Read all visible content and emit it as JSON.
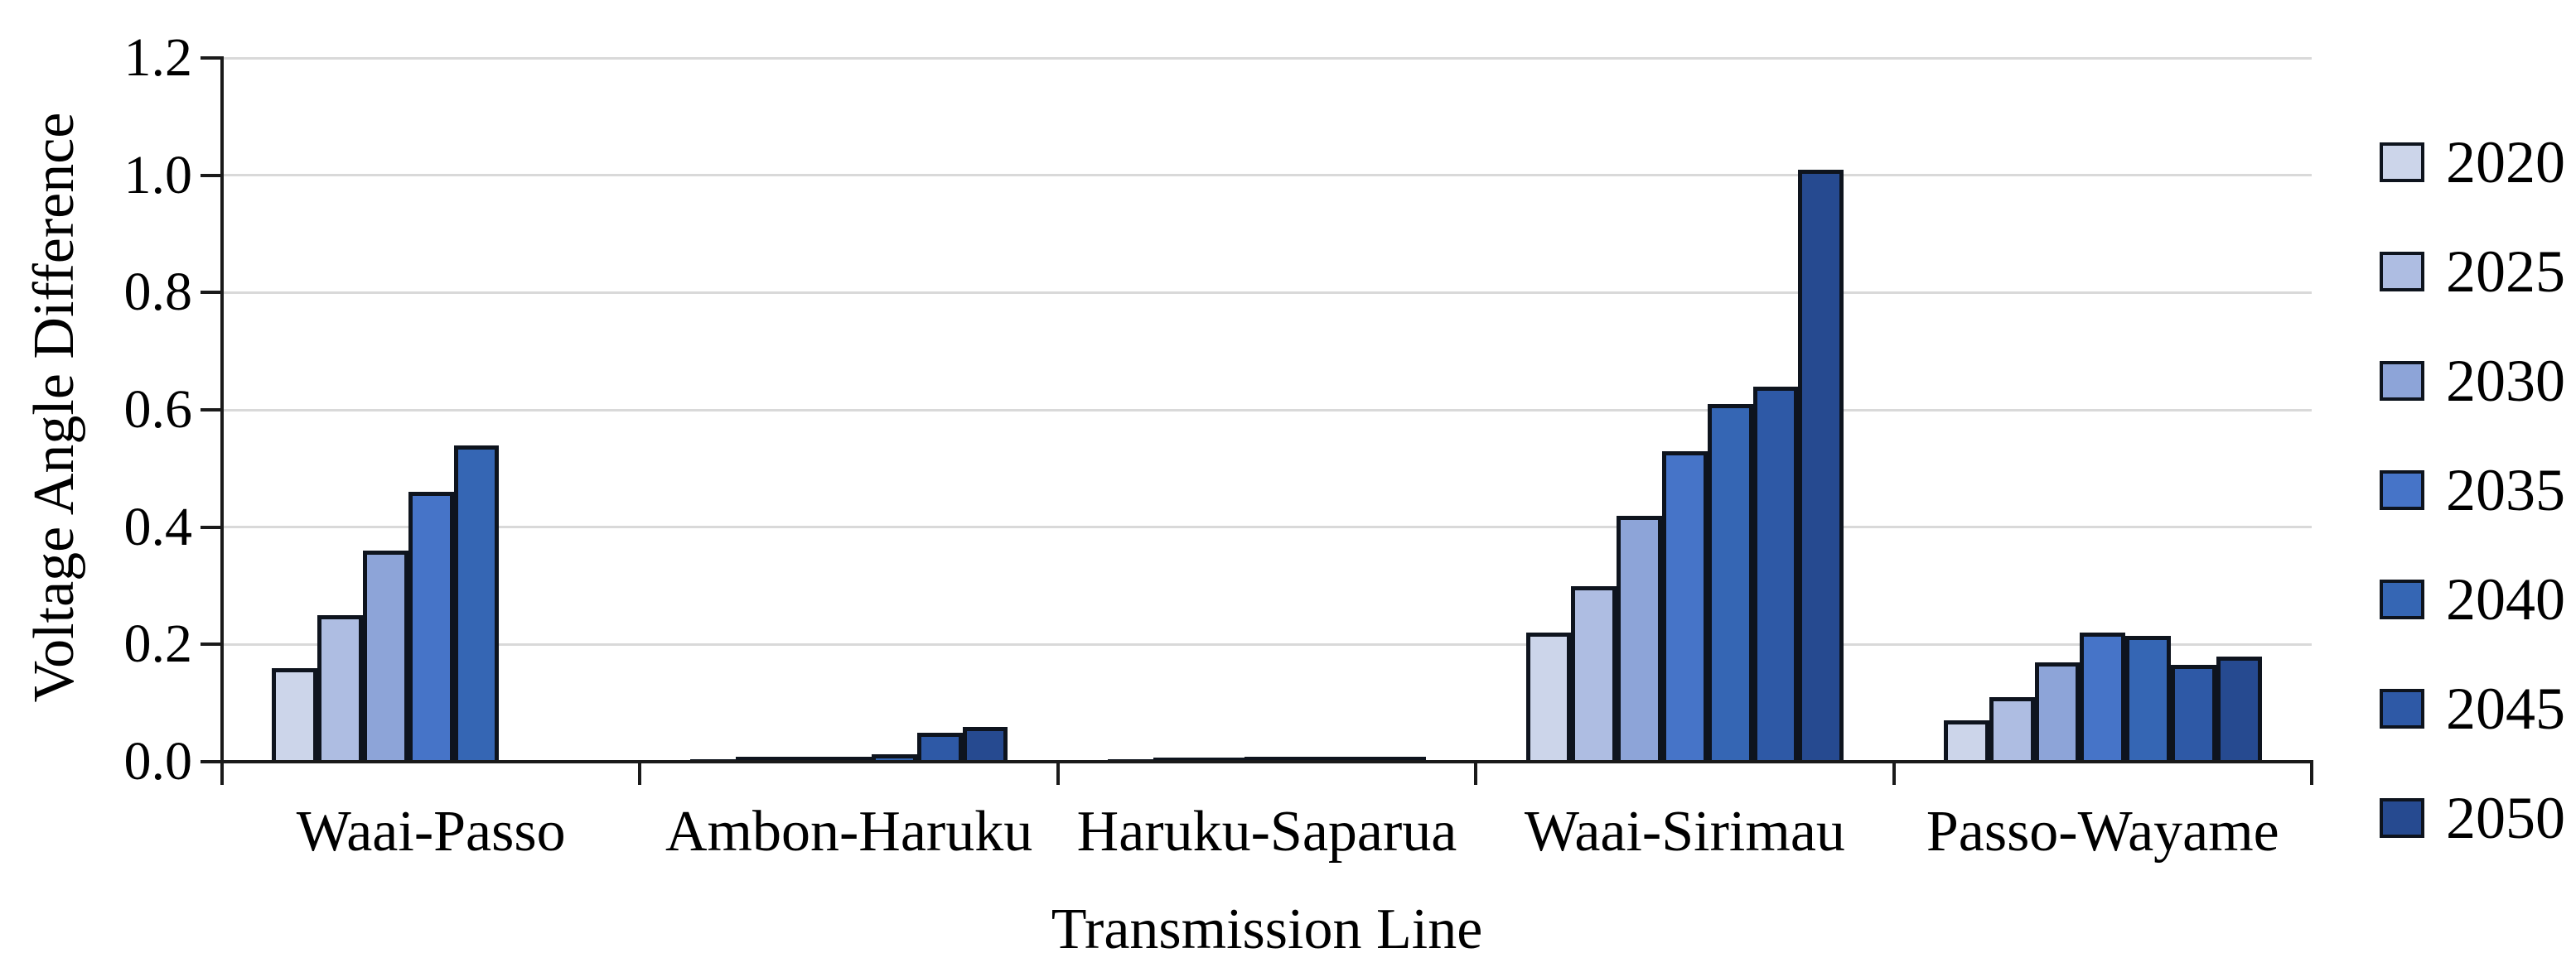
{
  "chart_data": {
    "type": "bar",
    "title": "",
    "xlabel": "Transmission Line",
    "ylabel": "Voltage Angle Difference",
    "ylim": [
      0,
      1.2
    ],
    "yticks": [
      0.0,
      0.2,
      0.4,
      0.6,
      0.8,
      1.0,
      1.2
    ],
    "ytick_labels": [
      "0.0",
      "0.2",
      "0.4",
      "0.6",
      "0.8",
      "1.0",
      "1.2"
    ],
    "grid": true,
    "legend_position": "right",
    "categories": [
      "Waai-Passo",
      "Ambon-Haruku",
      "Haruku-Saparua",
      "Waai-Sirimau",
      "Passo-Wayame"
    ],
    "series": [
      {
        "name": "2020",
        "color": "#ccd5ea",
        "values": [
          0.16,
          0.004,
          0.004,
          0.22,
          0.07
        ]
      },
      {
        "name": "2025",
        "color": "#aebde2",
        "values": [
          0.25,
          0.008,
          0.007,
          0.3,
          0.11
        ]
      },
      {
        "name": "2030",
        "color": "#8da4d8",
        "values": [
          0.36,
          0.008,
          0.007,
          0.42,
          0.17
        ]
      },
      {
        "name": "2035",
        "color": "#4674c8",
        "values": [
          0.46,
          0.009,
          0.008,
          0.53,
          0.22
        ]
      },
      {
        "name": "2040",
        "color": "#3566b4",
        "values": [
          0.54,
          0.013,
          0.008,
          0.61,
          0.215
        ]
      },
      {
        "name": "2045",
        "color": "#2e59a6",
        "values": [
          0.0,
          0.05,
          0.008,
          0.64,
          0.165
        ]
      },
      {
        "name": "2050",
        "color": "#264a90",
        "values": [
          0.0,
          0.06,
          0.008,
          1.01,
          0.18
        ]
      }
    ]
  },
  "style": {
    "axis_color": "#1a1a1a",
    "gridline_color": "#d9d9d9",
    "bar_border_color": "#0e141e",
    "background": "#ffffff",
    "text_color": "#000000"
  }
}
